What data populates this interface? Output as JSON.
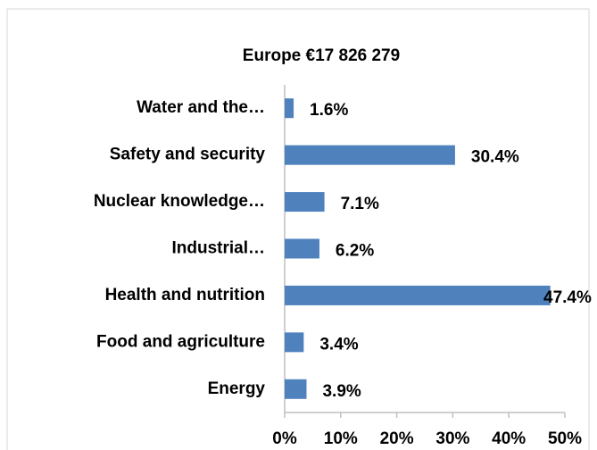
{
  "chart_data": {
    "type": "bar",
    "orientation": "horizontal",
    "title": "Europe €17 826 279",
    "categories": [
      "Water and the…",
      "Safety and security",
      "Nuclear knowledge…",
      "Industrial…",
      "Health and nutrition",
      "Food and agriculture",
      "Energy"
    ],
    "values": [
      1.6,
      30.4,
      7.1,
      6.2,
      47.4,
      3.4,
      3.9
    ],
    "value_labels": [
      "1.6%",
      "30.4%",
      "7.1%",
      "6.2%",
      "47.4%",
      "3.4%",
      "3.9%"
    ],
    "color": "#4f81bd",
    "xlim": [
      0,
      50
    ],
    "xticks": [
      {
        "value": 0,
        "label": "0%"
      },
      {
        "value": 10,
        "label": "10%"
      },
      {
        "value": 20,
        "label": "20%"
      },
      {
        "value": 30,
        "label": "30%"
      },
      {
        "value": 40,
        "label": "40%"
      },
      {
        "value": 50,
        "label": "50%"
      }
    ],
    "grid": false
  }
}
